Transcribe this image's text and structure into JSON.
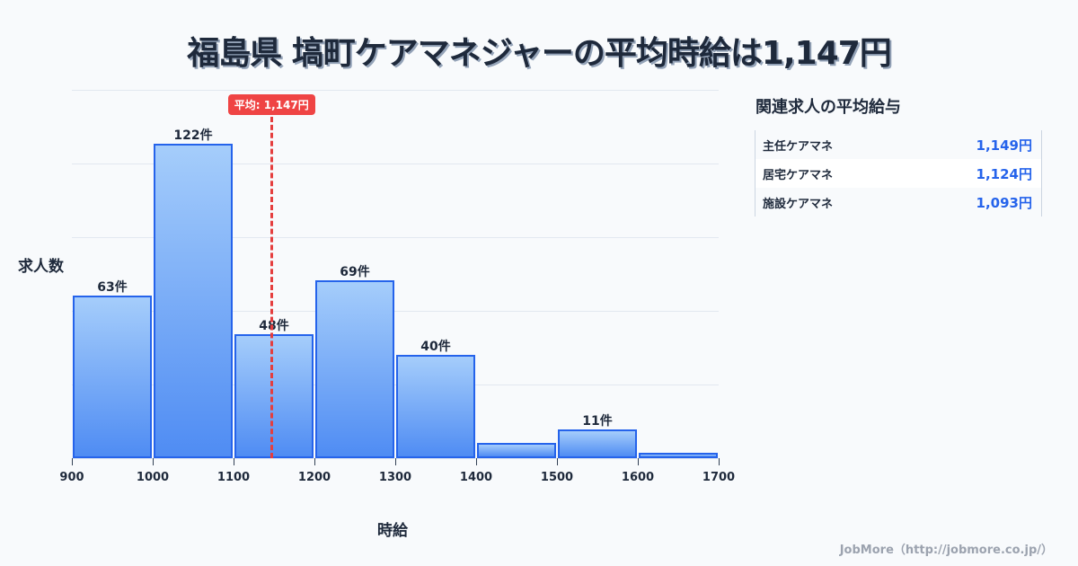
{
  "title": "福島県 塙町ケアマネジャーの平均時給は1,147円",
  "chart_data": {
    "type": "bar",
    "title": "福島県 塙町ケアマネジャーの平均時給は1,147円",
    "xlabel": "時給",
    "ylabel": "求人数",
    "bin_edges": [
      900,
      1000,
      1100,
      1200,
      1300,
      1400,
      1500,
      1600,
      1700
    ],
    "categories": [
      "900-1000",
      "1000-1100",
      "1100-1200",
      "1200-1300",
      "1300-1400",
      "1400-1500",
      "1500-1600",
      "1600-1700"
    ],
    "values": [
      63,
      122,
      48,
      69,
      40,
      6,
      11,
      2
    ],
    "value_labels": [
      "63件",
      "122件",
      "48件",
      "69件",
      "40件",
      "",
      "11件",
      ""
    ],
    "xlim": [
      900,
      1700
    ],
    "ylim": [
      0,
      143
    ],
    "grid": true,
    "mean": 1147,
    "mean_label": "平均: 1,147円",
    "bar_color": "#2563eb",
    "mean_color": "#ef4444"
  },
  "xticks": [
    "900",
    "1000",
    "1100",
    "1200",
    "1300",
    "1400",
    "1500",
    "1600",
    "1700"
  ],
  "sidebar": {
    "title": "関連求人の平均給与",
    "rows": [
      {
        "name": "主任ケアマネ",
        "value": "1,149円"
      },
      {
        "name": "居宅ケアマネ",
        "value": "1,124円"
      },
      {
        "name": "施設ケアマネ",
        "value": "1,093円"
      }
    ]
  },
  "footer": "JobMore（http://jobmore.co.jp/）"
}
